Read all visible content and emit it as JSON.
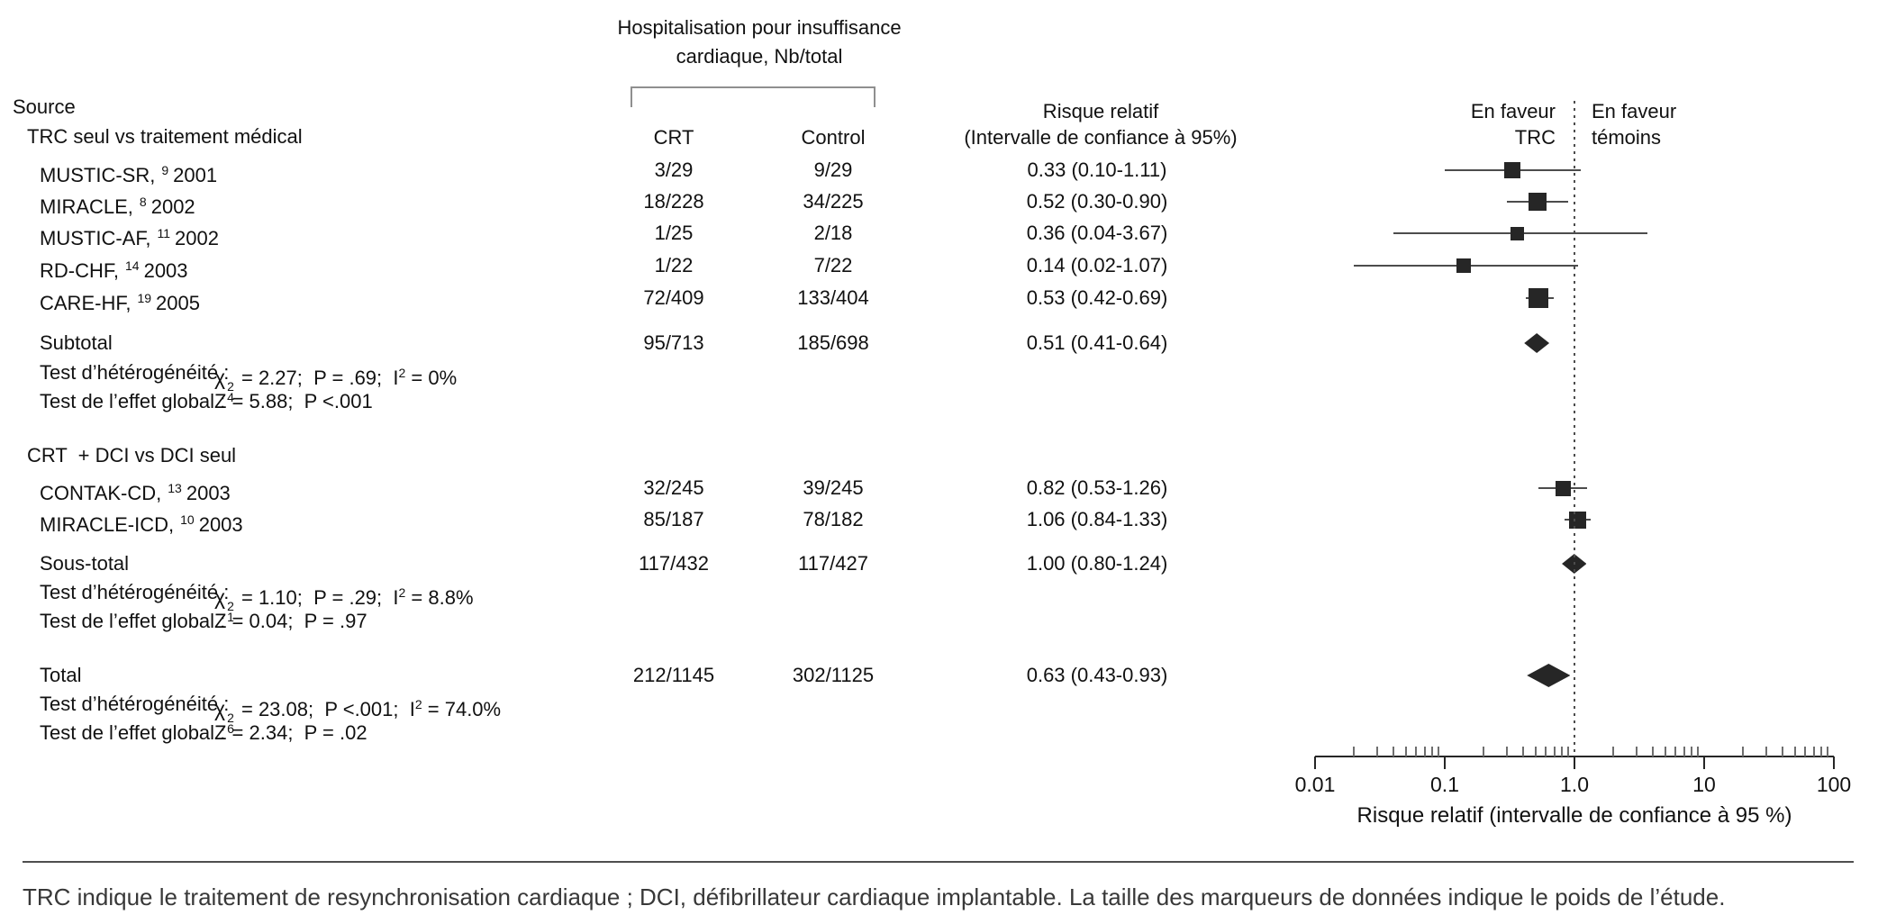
{
  "header": {
    "group_title_line1": "Hospitalisation pour insuffisance",
    "group_title_line2": "cardiaque, Nb/total",
    "source_label": "Source",
    "crt_label": "CRT",
    "control_label": "Control",
    "rr_label_line1": "Risque relatif",
    "rr_label_line2": "(Intervalle de confiance à 95%)",
    "favor_trc_line1": "En faveur",
    "favor_trc_line2": "TRC",
    "favor_temoins_line1": "En faveur",
    "favor_temoins_line2": "témoins"
  },
  "rows": [
    {
      "type": "section",
      "label": "TRC seul vs traitement médical"
    },
    {
      "type": "study",
      "name": "MUSTIC-SR,",
      "ref": "9",
      "year": "2001",
      "crt": "3/29",
      "control": "9/29",
      "rr_text": "0.33 (0.10-1.11)",
      "rr": 0.33,
      "ci_low": 0.1,
      "ci_high": 1.11,
      "marker_size": 18
    },
    {
      "type": "study",
      "name": "MIRACLE,",
      "ref": "8",
      "year": "2002",
      "crt": "18/228",
      "control": "34/225",
      "rr_text": "0.52 (0.30-0.90)",
      "rr": 0.52,
      "ci_low": 0.3,
      "ci_high": 0.9,
      "marker_size": 20
    },
    {
      "type": "study",
      "name": "MUSTIC-AF,",
      "ref": "11",
      "year": "2002",
      "crt": "1/25",
      "control": "2/18",
      "rr_text": "0.36 (0.04-3.67)",
      "rr": 0.36,
      "ci_low": 0.04,
      "ci_high": 3.67,
      "marker_size": 15
    },
    {
      "type": "study",
      "name": "RD-CHF,",
      "ref": "14",
      "year": "2003",
      "crt": "1/22",
      "control": "7/22",
      "rr_text": "0.14 (0.02-1.07)",
      "rr": 0.14,
      "ci_low": 0.02,
      "ci_high": 1.07,
      "marker_size": 16
    },
    {
      "type": "study",
      "name": "CARE-HF,",
      "ref": "19",
      "year": "2005",
      "crt": "72/409",
      "control": "133/404",
      "rr_text": "0.53 (0.42-0.69)",
      "rr": 0.53,
      "ci_low": 0.42,
      "ci_high": 0.69,
      "marker_size": 22
    },
    {
      "type": "summary",
      "label": "Subtotal",
      "crt": "95/713",
      "control": "185/698",
      "rr_text": "0.51 (0.41-0.64)",
      "rr": 0.51,
      "ci_low": 0.41,
      "ci_high": 0.64
    },
    {
      "type": "stat",
      "label": "Test d’hétérogénéité :",
      "chi_sup": "2",
      "chi_sub": "4",
      "after_chi": " = 2.27;  P = .69;  ",
      "i_sup": "2",
      "after_i": " = 0%"
    },
    {
      "type": "stat",
      "label": "Test de l’effet global :",
      "formula": "Z = 5.88;  P <.001"
    },
    {
      "type": "section",
      "label": "CRT  + DCI vs DCI seul"
    },
    {
      "type": "study",
      "name": "CONTAK-CD,",
      "ref": "13",
      "year": "2003",
      "crt": "32/245",
      "control": "39/245",
      "rr_text": "0.82 (0.53-1.26)",
      "rr": 0.82,
      "ci_low": 0.53,
      "ci_high": 1.26,
      "marker_size": 17
    },
    {
      "type": "study",
      "name": "MIRACLE-ICD,",
      "ref": "10",
      "year": "2003",
      "crt": "85/187",
      "control": "78/182",
      "rr_text": "1.06 (0.84-1.33)",
      "rr": 1.06,
      "ci_low": 0.84,
      "ci_high": 1.33,
      "marker_size": 19
    },
    {
      "type": "summary",
      "label": "Sous-total",
      "crt": "117/432",
      "control": "117/427",
      "rr_text": "1.00 (0.80-1.24)",
      "rr": 1.0,
      "ci_low": 0.8,
      "ci_high": 1.24
    },
    {
      "type": "stat",
      "label": "Test d’hétérogénéité :",
      "chi_sup": "2",
      "chi_sub": "1",
      "after_chi": " = 1.10;  P = .29;  ",
      "i_sup": "2",
      "after_i": " = 8.8%"
    },
    {
      "type": "stat",
      "label": "Test de l’effet global :",
      "formula": "Z = 0.04;  P = .97"
    },
    {
      "type": "summary",
      "total": true,
      "label": "Total",
      "crt": "212/1145",
      "control": "302/1125",
      "rr_text": "0.63 (0.43-0.93)",
      "rr": 0.63,
      "ci_low": 0.43,
      "ci_high": 0.93
    },
    {
      "type": "stat",
      "label": "Test d’hétérogénéité :",
      "chi_sup": "2",
      "chi_sub": "6",
      "after_chi": " = 23.08;  P <.001;  ",
      "i_sup": "2",
      "after_i": " = 74.0%"
    },
    {
      "type": "stat",
      "label": "Test de l’effet global :",
      "formula": "Z = 2.34;  P = .02"
    }
  ],
  "chart_data": {
    "type": "forest",
    "title": "Hospitalisation pour insuffisance cardiaque, Nb/total",
    "x_axis": {
      "scale": "log",
      "range": [
        0.01,
        100
      ],
      "tick_labels": [
        "0.01",
        "0.1",
        "1.0",
        "10",
        "100"
      ],
      "tick_values": [
        0.01,
        0.1,
        1.0,
        10,
        100
      ],
      "label": "Risque relatif (intervalle de confiance à 95 %)",
      "null_line": 1.0
    },
    "favors": {
      "left": "En faveur TRC",
      "right": "En faveur témoins"
    },
    "groups": [
      {
        "name": "TRC seul vs traitement médical",
        "studies": [
          {
            "source": "MUSTIC-SR",
            "ref": 9,
            "year": 2001,
            "crt": "3/29",
            "control": "9/29",
            "rr": 0.33,
            "ci": [
              0.1,
              1.11
            ]
          },
          {
            "source": "MIRACLE",
            "ref": 8,
            "year": 2002,
            "crt": "18/228",
            "control": "34/225",
            "rr": 0.52,
            "ci": [
              0.3,
              0.9
            ]
          },
          {
            "source": "MUSTIC-AF",
            "ref": 11,
            "year": 2002,
            "crt": "1/25",
            "control": "2/18",
            "rr": 0.36,
            "ci": [
              0.04,
              3.67
            ]
          },
          {
            "source": "RD-CHF",
            "ref": 14,
            "year": 2003,
            "crt": "1/22",
            "control": "7/22",
            "rr": 0.14,
            "ci": [
              0.02,
              1.07
            ]
          },
          {
            "source": "CARE-HF",
            "ref": 19,
            "year": 2005,
            "crt": "72/409",
            "control": "133/404",
            "rr": 0.53,
            "ci": [
              0.42,
              0.69
            ]
          }
        ],
        "subtotal": {
          "label": "Subtotal",
          "crt": "95/713",
          "control": "185/698",
          "rr": 0.51,
          "ci": [
            0.41,
            0.64
          ]
        },
        "heterogeneity": "χ²(4) = 2.27; P = .69; I² = 0%",
        "overall_effect": "Z = 5.88; P <.001"
      },
      {
        "name": "CRT + DCI vs DCI seul",
        "studies": [
          {
            "source": "CONTAK-CD",
            "ref": 13,
            "year": 2003,
            "crt": "32/245",
            "control": "39/245",
            "rr": 0.82,
            "ci": [
              0.53,
              1.26
            ]
          },
          {
            "source": "MIRACLE-ICD",
            "ref": 10,
            "year": 2003,
            "crt": "85/187",
            "control": "78/182",
            "rr": 1.06,
            "ci": [
              0.84,
              1.33
            ]
          }
        ],
        "subtotal": {
          "label": "Sous-total",
          "crt": "117/432",
          "control": "117/427",
          "rr": 1.0,
          "ci": [
            0.8,
            1.24
          ]
        },
        "heterogeneity": "χ²(1) = 1.10; P = .29; I² = 8.8%",
        "overall_effect": "Z = 0.04; P = .97"
      }
    ],
    "total": {
      "label": "Total",
      "crt": "212/1145",
      "control": "302/1125",
      "rr": 0.63,
      "ci": [
        0.43,
        0.93
      ],
      "heterogeneity": "χ²(6) = 23.08; P <.001; I² = 74.0%",
      "overall_effect": "Z = 2.34; P = .02"
    }
  },
  "colors": {
    "marker": "#262626",
    "ci_line": "#4c4c4c",
    "bracket": "#8f8f8f",
    "text": "#111111"
  },
  "footnote": {
    "text": "TRC indique le traitement de resynchronisation cardiaque ; DCI, défibrillateur cardiaque implantable. La taille des marqueurs de données indique le poids de l’étude."
  }
}
